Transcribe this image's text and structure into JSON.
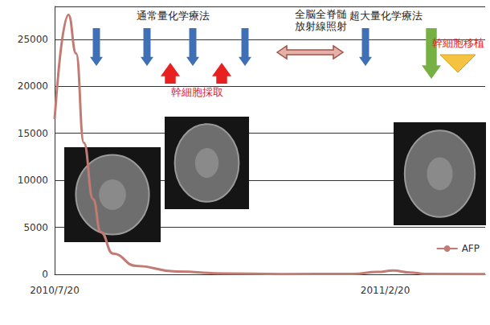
{
  "chart_data": {
    "type": "line",
    "x": [
      "2010/7/20",
      "2010/7/29",
      "2010/8/3",
      "2010/8/8",
      "2010/8/14",
      "2010/8/19",
      "2010/8/27",
      "2010/9/11",
      "2010/10/7",
      "2010/11/8",
      "2010/12/14",
      "2011/1/30",
      "2011/2/15",
      "2011/2/25",
      "2011/3/8",
      "2011/3/18",
      "2011/4/26"
    ],
    "series": [
      {
        "name": "AFP",
        "color": "#c27b73",
        "values": [
          16500,
          27600,
          23500,
          14000,
          8000,
          4500,
          2200,
          900,
          300,
          80,
          30,
          40,
          250,
          400,
          200,
          50,
          30
        ]
      }
    ],
    "xlim": [
      "2010/7/20",
      "2011/4/26"
    ],
    "xticks": [
      "2010/7/20",
      "2011/2/20"
    ],
    "ylim": [
      0,
      28500
    ],
    "yticks": [
      0,
      5000,
      10000,
      15000,
      20000,
      25000
    ],
    "grid": true,
    "legend": "lower right",
    "annotations": [
      {
        "text": "通常量化学療法",
        "color": "#222222"
      },
      {
        "text": "全脳全脊髄\n放射線照射",
        "color": "#222222"
      },
      {
        "text": "超大量化学療法",
        "color": "#222222"
      },
      {
        "text": "幹細胞採取",
        "color": "#e0201f"
      },
      {
        "text": "幹細胞移植",
        "color": "#e0201f"
      }
    ]
  }
}
